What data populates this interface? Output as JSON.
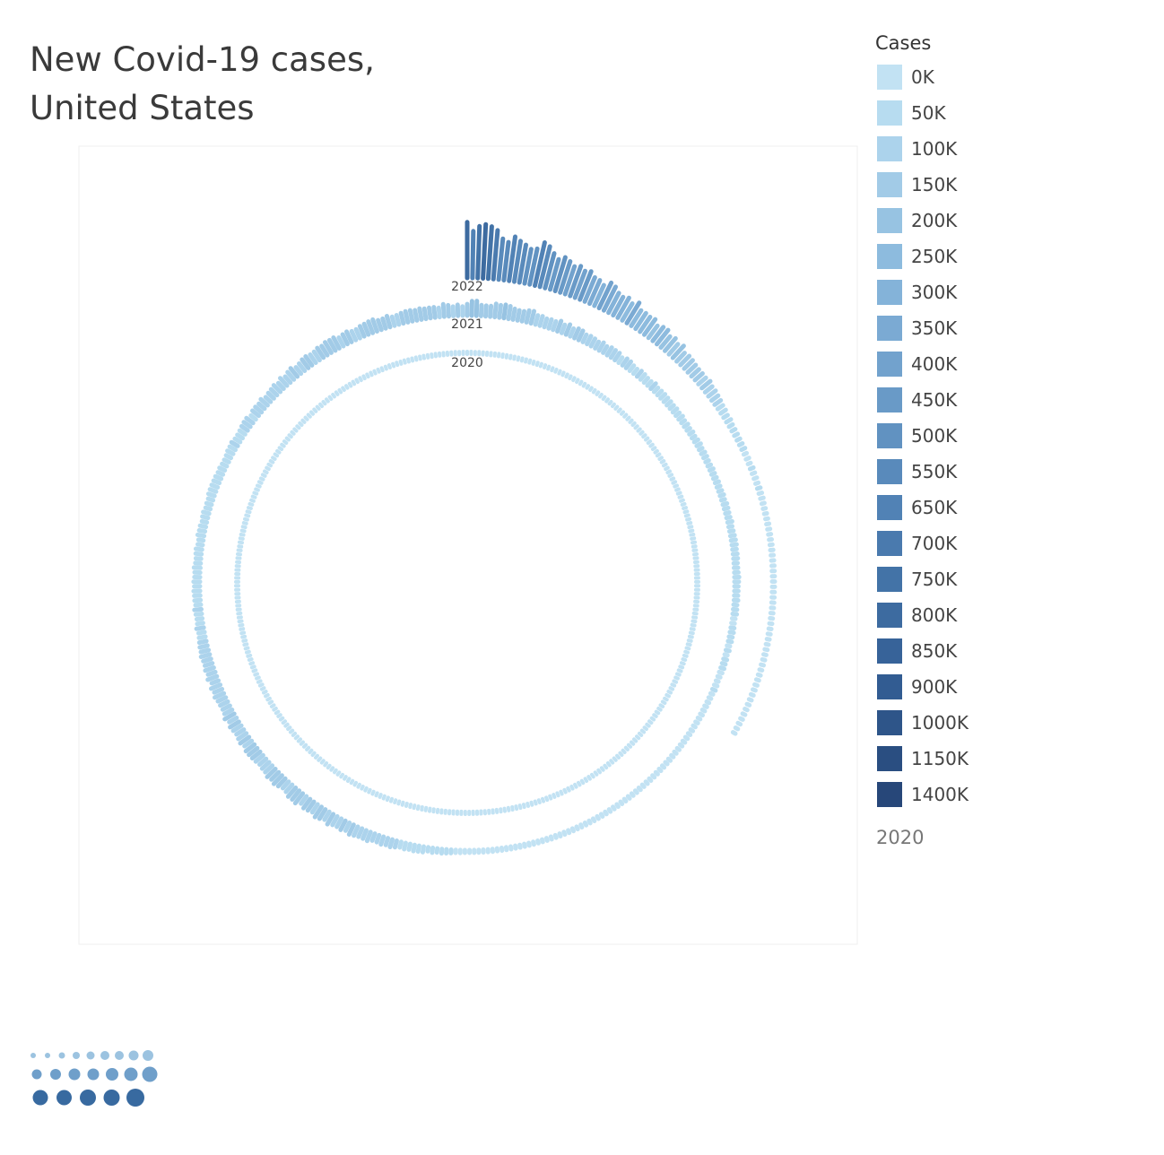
{
  "title_lines": [
    "New Covid-19 cases,",
    "United States"
  ],
  "legend": {
    "title": "Cases",
    "items": [
      {
        "label": "0K",
        "color": "#c2e2f3"
      },
      {
        "label": "50K",
        "color": "#b7dcf0"
      },
      {
        "label": "100K",
        "color": "#acd3ec"
      },
      {
        "label": "150K",
        "color": "#a2cbe7"
      },
      {
        "label": "200K",
        "color": "#97c3e2"
      },
      {
        "label": "250K",
        "color": "#8dbbde"
      },
      {
        "label": "300K",
        "color": "#84b3d9"
      },
      {
        "label": "350K",
        "color": "#7baad3"
      },
      {
        "label": "400K",
        "color": "#72a2cd"
      },
      {
        "label": "450K",
        "color": "#699ac7"
      },
      {
        "label": "500K",
        "color": "#6192c1"
      },
      {
        "label": "550K",
        "color": "#598abb"
      },
      {
        "label": "650K",
        "color": "#5182b5"
      },
      {
        "label": "700K",
        "color": "#4a7aae"
      },
      {
        "label": "750K",
        "color": "#4373a7"
      },
      {
        "label": "800K",
        "color": "#3d6ba0"
      },
      {
        "label": "850K",
        "color": "#376399"
      },
      {
        "label": "900K",
        "color": "#325c92"
      },
      {
        "label": "1000K",
        "color": "#2e5589"
      },
      {
        "label": "1150K",
        "color": "#2a4e81"
      },
      {
        "label": "1400K",
        "color": "#274779"
      }
    ]
  },
  "year_readout": "2020",
  "chart_data": {
    "type": "radial-bar",
    "title": "New Covid-19 cases, United States",
    "color_legend_title": "Cases",
    "series": [
      {
        "year": "2020",
        "label": "2020",
        "start_month": 1,
        "end_month": 12,
        "monthly_cases_k": [
          0,
          0,
          1,
          3,
          3,
          3,
          6,
          6,
          4,
          8,
          14,
          18
        ]
      },
      {
        "year": "2021",
        "label": "2021",
        "start_month": 1,
        "end_month": 12,
        "monthly_cases_k": [
          185,
          110,
          55,
          60,
          35,
          15,
          35,
          150,
          135,
          80,
          85,
          150
        ]
      },
      {
        "year": "2022",
        "label": "2022",
        "start_month": 1,
        "end_month": 4,
        "monthly_cases_k": [
          700,
          300,
          50,
          30
        ]
      }
    ]
  },
  "logo": {
    "rows": [
      {
        "count": 9,
        "color": "#9cc3e0"
      },
      {
        "count": 7,
        "color": "#6f9fca"
      },
      {
        "count": 5,
        "color": "#386aa0"
      }
    ]
  }
}
